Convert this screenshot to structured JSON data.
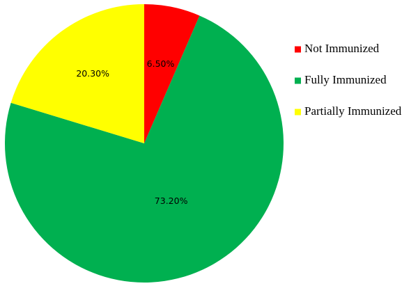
{
  "chart_data": {
    "type": "pie",
    "title": "",
    "start_angle_deg": 0,
    "direction": "clockwise",
    "legend_position": "right",
    "slices": [
      {
        "label": "Not Immunized",
        "value": 6.5,
        "display": "6.50%",
        "color": "#ff0000"
      },
      {
        "label": "Fully Immunized",
        "value": 73.2,
        "display": "73.20%",
        "color": "#00b050"
      },
      {
        "label": "Partially Immunized",
        "value": 20.3,
        "display": "20.30%",
        "color": "#ffff00"
      }
    ]
  }
}
